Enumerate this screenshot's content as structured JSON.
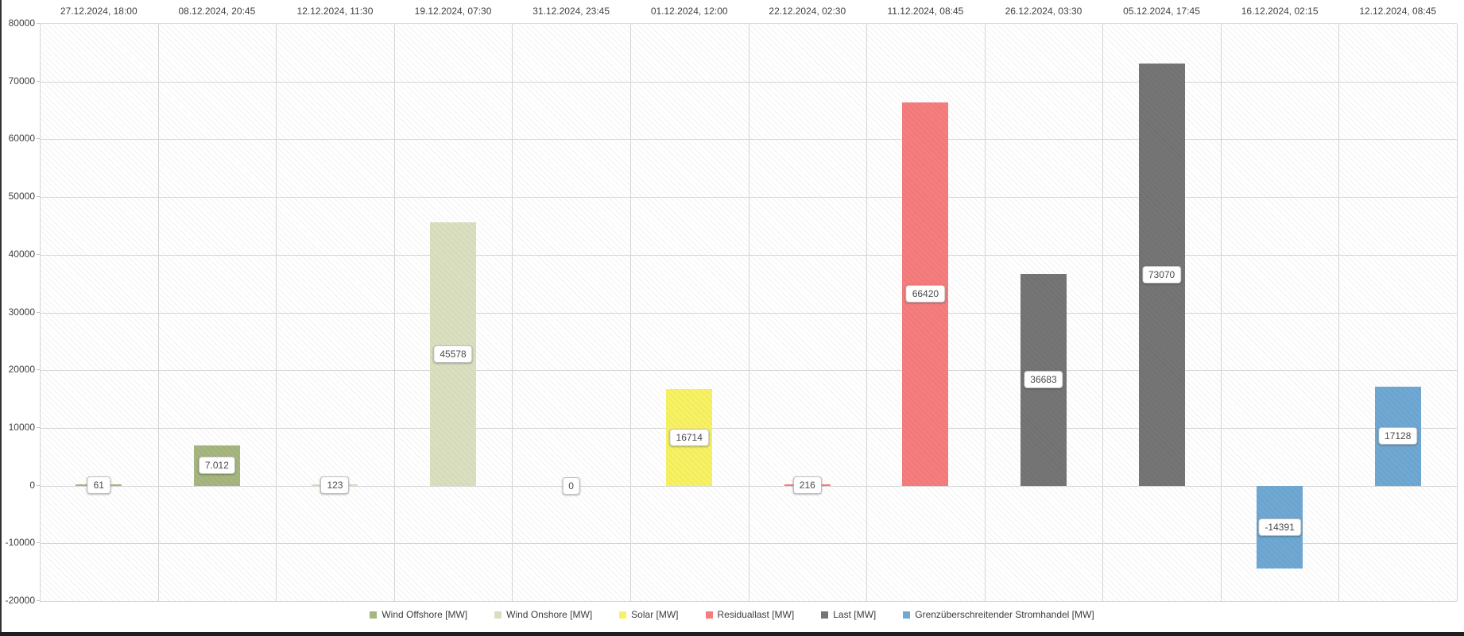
{
  "window": {
    "edge_color_left": "#333333",
    "edge_color_bottom": "#1f1f1f",
    "background": "#ffffff"
  },
  "chart_data": {
    "type": "bar",
    "title": "",
    "xlabel": "",
    "ylabel": "",
    "unit": "MW",
    "ylim": [
      -20000,
      80000
    ],
    "ytick_step": 10000,
    "ytick_labels": [
      "80000",
      "70000",
      "60000",
      "50000",
      "40000",
      "30000",
      "20000",
      "10000",
      "0",
      "-10000",
      "-20000"
    ],
    "grid": true,
    "x_axis_position": "top",
    "legend_position": "bottom",
    "series_legend": [
      {
        "label": "Wind Offshore [MW]",
        "color": "#a5b67f"
      },
      {
        "label": "Wind Onshore [MW]",
        "color": "#dae0bf"
      },
      {
        "label": "Solar [MW]",
        "color": "#f7f263"
      },
      {
        "label": "Residuallast [MW]",
        "color": "#f57d7d"
      },
      {
        "label": "Last [MW]",
        "color": "#757575"
      },
      {
        "label": "Grenzüberschreitender Stromhandel [MW]",
        "color": "#6fa8d3"
      }
    ],
    "categories": [
      "27.12.2024, 18:00",
      "08.12.2024, 20:45",
      "12.12.2024, 11:30",
      "19.12.2024, 07:30",
      "31.12.2024, 23:45",
      "01.12.2024, 12:00",
      "22.12.2024, 02:30",
      "11.12.2024, 08:45",
      "26.12.2024, 03:30",
      "05.12.2024, 17:45",
      "16.12.2024, 02:15",
      "12.12.2024, 08:45"
    ],
    "bars": [
      {
        "category": "27.12.2024, 18:00",
        "series": "Wind Offshore [MW]",
        "value": 61,
        "label": "61"
      },
      {
        "category": "08.12.2024, 20:45",
        "series": "Wind Offshore [MW]",
        "value": 7012,
        "label": "7.012"
      },
      {
        "category": "12.12.2024, 11:30",
        "series": "Wind Onshore [MW]",
        "value": 123,
        "label": "123"
      },
      {
        "category": "19.12.2024, 07:30",
        "series": "Wind Onshore [MW]",
        "value": 45578,
        "label": "45578"
      },
      {
        "category": "31.12.2024, 23:45",
        "series": "Solar [MW]",
        "value": 0,
        "label": "0"
      },
      {
        "category": "01.12.2024, 12:00",
        "series": "Solar [MW]",
        "value": 16714,
        "label": "16714"
      },
      {
        "category": "22.12.2024, 02:30",
        "series": "Residuallast [MW]",
        "value": 216,
        "label": "216"
      },
      {
        "category": "11.12.2024, 08:45",
        "series": "Residuallast [MW]",
        "value": 66420,
        "label": "66420"
      },
      {
        "category": "26.12.2024, 03:30",
        "series": "Last [MW]",
        "value": 36683,
        "label": "36683"
      },
      {
        "category": "05.12.2024, 17:45",
        "series": "Last [MW]",
        "value": 73070,
        "label": "73070"
      },
      {
        "category": "16.12.2024, 02:15",
        "series": "Grenzüberschreitender Stromhandel [MW]",
        "value": -14391,
        "label": "-14391"
      },
      {
        "category": "12.12.2024, 08:45",
        "series": "Grenzüberschreitender Stromhandel [MW]",
        "value": 17128,
        "label": "17128"
      }
    ]
  }
}
